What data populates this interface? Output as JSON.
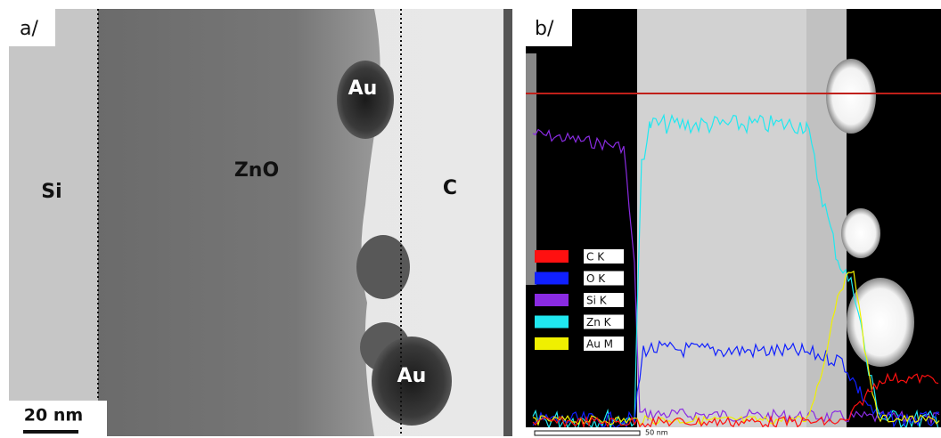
{
  "panel_a": {
    "label": "a/",
    "regions": [
      "Si",
      "ZnO",
      "C"
    ],
    "particles": [
      "Au",
      "Au"
    ],
    "scale_bar": "20 nm"
  },
  "panel_b": {
    "label": "b/",
    "legend": [
      "C K",
      "O K",
      "Si K",
      "Zn K",
      "Au M"
    ],
    "scale_bar": "50 nm"
  }
}
